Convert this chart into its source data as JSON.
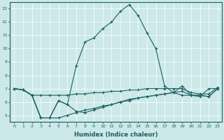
{
  "xlabel": "Humidex (Indice chaleur)",
  "bg_color": "#cce8e8",
  "grid_color": "#ffffff",
  "line_color": "#1a6060",
  "xlim": [
    -0.5,
    23.5
  ],
  "ylim": [
    4.5,
    13.5
  ],
  "yticks": [
    5,
    6,
    7,
    8,
    9,
    10,
    11,
    12,
    13
  ],
  "xticks": [
    0,
    1,
    2,
    3,
    4,
    5,
    6,
    7,
    8,
    9,
    10,
    11,
    12,
    13,
    14,
    15,
    16,
    17,
    18,
    19,
    20,
    21,
    22,
    23
  ],
  "series": [
    {
      "x": [
        0,
        1,
        2,
        3,
        4,
        5,
        6,
        7,
        8,
        9,
        10,
        11,
        12,
        13,
        14,
        15,
        16,
        17,
        18,
        19,
        20,
        21,
        22,
        23
      ],
      "y": [
        7.0,
        6.9,
        6.5,
        4.8,
        4.8,
        6.1,
        5.8,
        8.7,
        10.5,
        10.8,
        11.5,
        12.0,
        12.8,
        13.3,
        12.5,
        11.2,
        10.0,
        7.2,
        6.7,
        6.5,
        6.5,
        6.4,
        7.0,
        7.0
      ]
    },
    {
      "x": [
        0,
        1,
        2,
        3,
        4,
        5,
        6,
        7,
        8,
        9,
        10,
        11,
        12,
        13,
        14,
        15,
        16,
        17,
        18,
        19,
        20,
        21,
        22,
        23
      ],
      "y": [
        7.0,
        6.9,
        6.5,
        6.5,
        6.5,
        6.5,
        6.5,
        6.6,
        6.6,
        6.7,
        6.7,
        6.8,
        6.8,
        6.9,
        6.9,
        7.0,
        7.0,
        7.0,
        7.0,
        7.0,
        6.7,
        6.6,
        6.6,
        7.1
      ]
    },
    {
      "x": [
        0,
        1,
        2,
        3,
        4,
        5,
        6,
        7,
        8,
        9,
        10,
        11,
        12,
        13,
        14,
        15,
        16,
        17,
        18,
        19,
        20,
        21,
        22,
        23
      ],
      "y": [
        7.0,
        6.9,
        6.5,
        4.8,
        4.8,
        4.8,
        5.0,
        5.2,
        5.4,
        5.5,
        5.7,
        5.8,
        6.0,
        6.2,
        6.3,
        6.4,
        6.5,
        6.6,
        6.7,
        6.8,
        6.5,
        6.5,
        6.4,
        7.0
      ]
    },
    {
      "x": [
        0,
        1,
        2,
        3,
        4,
        5,
        6,
        7,
        8,
        9,
        10,
        11,
        12,
        13,
        14,
        15,
        16,
        17,
        18,
        19,
        20,
        21,
        22,
        23
      ],
      "y": [
        7.0,
        6.9,
        6.5,
        4.8,
        4.8,
        6.1,
        5.8,
        5.3,
        5.2,
        5.4,
        5.6,
        5.8,
        6.0,
        6.1,
        6.3,
        6.4,
        6.5,
        6.6,
        6.7,
        7.2,
        6.5,
        6.5,
        6.4,
        7.0
      ]
    }
  ]
}
